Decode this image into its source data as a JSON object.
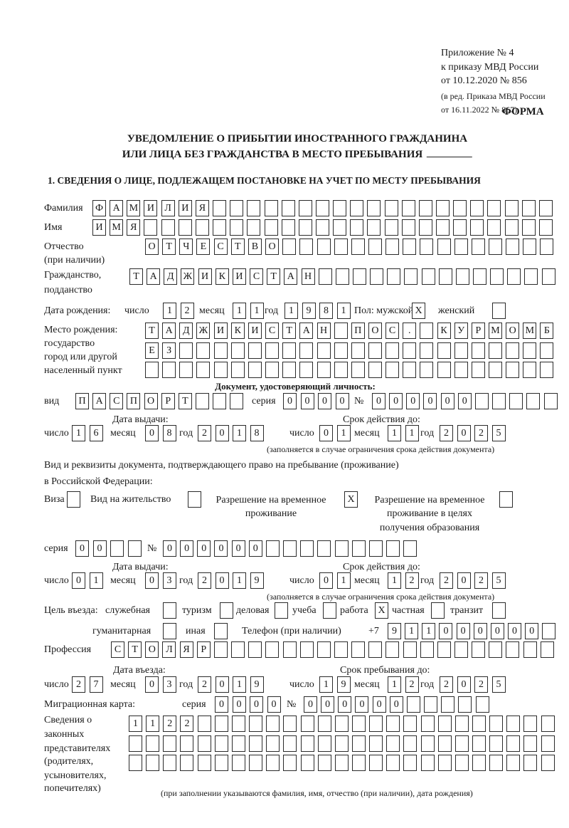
{
  "header": {
    "appendix_lines": [
      "Приложение № 4",
      "к приказу МВД России",
      "от 10.12.2020 № 856"
    ],
    "amendment_lines": [
      "(в ред. Приказа МВД России",
      "от 16.11.2022 № 867)"
    ],
    "form_label": "ФОРМА",
    "title_line1": "УВЕДОМЛЕНИЕ О ПРИБЫТИИ ИНОСТРАННОГО ГРАЖДАНИНА",
    "title_line2": "ИЛИ ЛИЦА БЕЗ ГРАЖДАНСТВА В МЕСТО ПРЕБЫВАНИЯ"
  },
  "section1": {
    "heading": "1. СВЕДЕНИЯ О ЛИЦЕ, ПОДЛЕЖАЩЕМ ПОСТАНОВКЕ НА УЧЕТ ПО МЕСТУ ПРЕБЫВАНИЯ",
    "surname": {
      "label": "Фамилия",
      "value": "ФАМИЛИЯ"
    },
    "name": {
      "label": "Имя",
      "value": "ИМЯ"
    },
    "patronymic": {
      "label": "Отчество",
      "label2": "(при наличии)",
      "value": "ОТЧЕСТВО"
    },
    "citizenship": {
      "label": "Гражданство,",
      "label2": "подданство",
      "value": "ТАДЖИКИСТАН"
    },
    "birth_date": {
      "label": "Дата рождения:",
      "day_label": "число",
      "day": "12",
      "month_label": "месяц",
      "month": "11",
      "year_label": "год",
      "year": "1981"
    },
    "sex": {
      "label": "Пол: мужской",
      "male": "X",
      "female_label": "женский",
      "female": ""
    },
    "birth_place": {
      "labels": [
        "Место рождения:",
        "государство",
        "город или другой",
        "населенный пункт"
      ],
      "rows": [
        "ТАДЖИКИСТАН ПОС. КУРМОМБ",
        "ЕЗ",
        ""
      ]
    },
    "id_document": {
      "heading": "Документ, удостоверяющий личность:",
      "type_label": "вид",
      "type": "ПАСПОРТ",
      "series_label": "серия",
      "series": "0000",
      "number_label": "№",
      "number": "000000",
      "issue_label": "Дата выдачи:",
      "valid_label": "Срок действия до:",
      "issue": {
        "day": "16",
        "month": "08",
        "year": "2018"
      },
      "valid": {
        "day": "01",
        "month": "11",
        "year": "2025"
      },
      "note": "(заполняется в случае ограничения срока действия документа)"
    },
    "stay_document": {
      "heading_line1": "Вид и реквизиты документа, подтверждающего право на пребывание (проживание)",
      "heading_line2": "в Российской Федерации:",
      "visa_label": "Виза",
      "visa": "",
      "residence_label": "Вид на жительство",
      "residence": "",
      "temp_label1": "Разрешение на временное",
      "temp_label2": "проживание",
      "temp": "X",
      "edu_label1": "Разрешение на временное",
      "edu_label2": "проживание в целях",
      "edu_label3": "получения образования",
      "edu": "",
      "series_label": "серия",
      "series": "00",
      "number_label": "№",
      "number": "000000",
      "issue_label": "Дата выдачи:",
      "valid_label": "Срок действия до:",
      "issue": {
        "day": "01",
        "month": "03",
        "year": "2019"
      },
      "valid": {
        "day": "01",
        "month": "12",
        "year": "2025"
      },
      "note": "(заполняется в случае ограничения срока действия документа)"
    },
    "date_labels": {
      "day": "число",
      "month": "месяц",
      "year": "год"
    },
    "purpose": {
      "label": "Цель въезда:",
      "options": [
        {
          "label": "служебная",
          "mark": ""
        },
        {
          "label": "туризм",
          "mark": ""
        },
        {
          "label": "деловая",
          "mark": ""
        },
        {
          "label": "учеба",
          "mark": ""
        },
        {
          "label": "работа",
          "mark": "X"
        },
        {
          "label": "частная",
          "mark": ""
        },
        {
          "label": "транзит",
          "mark": ""
        },
        {
          "label": "гуманитарная",
          "mark": ""
        },
        {
          "label": "иная",
          "mark": ""
        }
      ]
    },
    "phone": {
      "label": "Телефон (при наличии)",
      "prefix": "+7",
      "value": "911000000"
    },
    "profession": {
      "label": "Профессия",
      "value": "СТОЛЯР"
    },
    "entry": {
      "entry_label": "Дата въезда:",
      "stay_label": "Срок пребывания до:",
      "entry": {
        "day": "27",
        "month": "03",
        "year": "2019"
      },
      "stay": {
        "day": "19",
        "month": "12",
        "year": "2025"
      }
    },
    "migration_card": {
      "label": "Миграционная карта:",
      "series_label": "серия",
      "series": "0000",
      "number_label": "№",
      "number": "000000"
    },
    "representatives": {
      "labels": [
        "Сведения о",
        "законных",
        "представителях",
        "(родителях,",
        "усыновителях,",
        "попечителях)"
      ],
      "rows": [
        "1122",
        "",
        ""
      ],
      "note": "(при заполнении указываются фамилия, имя, отчество (при наличии), дата рождения)"
    }
  }
}
